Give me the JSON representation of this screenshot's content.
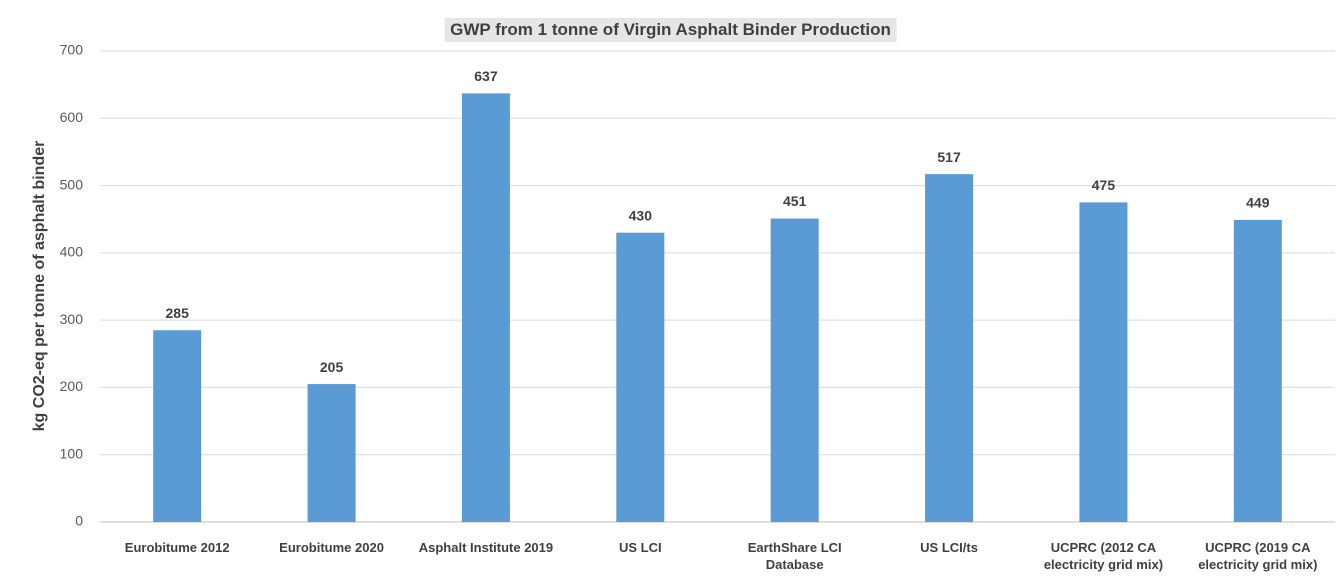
{
  "chart_data": {
    "type": "bar",
    "title": "GWP from 1 tonne of Virgin Asphalt Binder Production",
    "y_label": "kg CO2-eq per tonne of asphalt binder",
    "categories": [
      "Eurobitume 2012",
      "Eurobitume 2020",
      "Asphalt Institute 2019",
      "US LCI",
      "EarthShare LCI Database",
      "US LCI/ts",
      "UCPRC (2012 CA electricity grid mix)",
      "UCPRC (2019 CA electricity grid mix)"
    ],
    "values": [
      285,
      205,
      637,
      430,
      451,
      517,
      475,
      449
    ],
    "color": "#5b9bd5",
    "ylim": [
      0,
      700
    ],
    "yticks": [
      0,
      100,
      200,
      300,
      400,
      500,
      600,
      700
    ],
    "grid": true
  }
}
